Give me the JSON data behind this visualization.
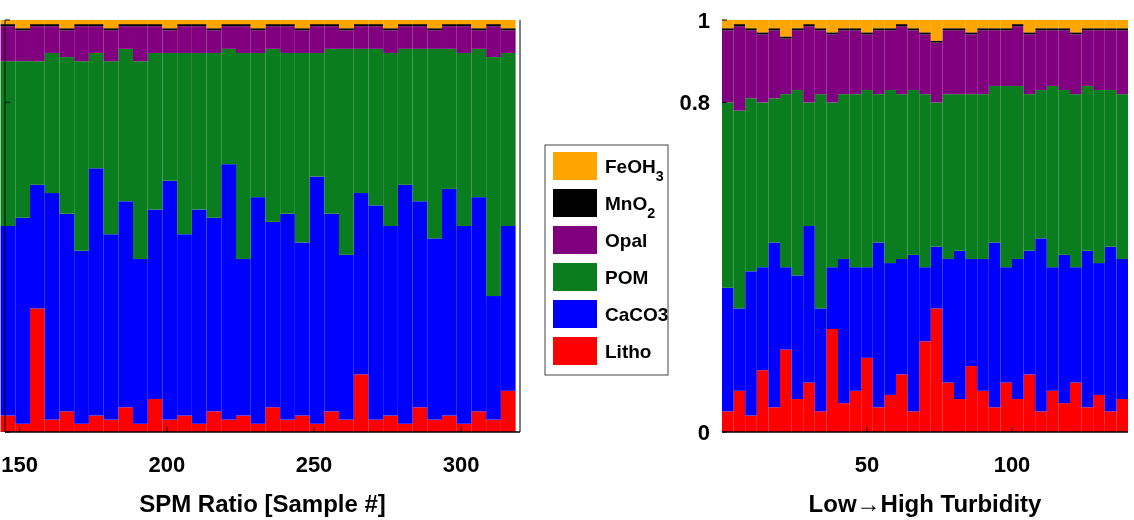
{
  "chart_data": [
    {
      "type": "bar",
      "stacked": true,
      "xlabel": "SPM Ratio [Sample #]",
      "xlim": [
        145,
        320
      ],
      "xticks": [
        150,
        200,
        250,
        300
      ],
      "ylim": [
        0,
        1
      ],
      "yticks": [
        0,
        0.8,
        1
      ],
      "tick_labels": "x",
      "legend": "right",
      "x": [
        146,
        151,
        156,
        161,
        166,
        171,
        176,
        181,
        186,
        191,
        196,
        201,
        206,
        211,
        216,
        221,
        226,
        231,
        236,
        241,
        246,
        251,
        256,
        261,
        266,
        271,
        276,
        281,
        286,
        291,
        296,
        301,
        306,
        311,
        316
      ],
      "series": [
        {
          "name": "Litho",
          "color": "#ff0000",
          "values": [
            0.04,
            0.02,
            0.3,
            0.03,
            0.05,
            0.02,
            0.04,
            0.03,
            0.06,
            0.02,
            0.08,
            0.03,
            0.04,
            0.02,
            0.05,
            0.03,
            0.04,
            0.02,
            0.06,
            0.03,
            0.04,
            0.02,
            0.05,
            0.03,
            0.14,
            0.03,
            0.04,
            0.02,
            0.06,
            0.03,
            0.04,
            0.02,
            0.05,
            0.03,
            0.1
          ]
        },
        {
          "name": "CaCO3",
          "color": "#0000ff",
          "values": [
            0.46,
            0.5,
            0.3,
            0.55,
            0.48,
            0.42,
            0.6,
            0.45,
            0.5,
            0.4,
            0.46,
            0.58,
            0.44,
            0.52,
            0.47,
            0.62,
            0.38,
            0.55,
            0.45,
            0.5,
            0.42,
            0.6,
            0.48,
            0.4,
            0.44,
            0.52,
            0.46,
            0.58,
            0.5,
            0.44,
            0.55,
            0.48,
            0.52,
            0.3,
            0.4
          ]
        },
        {
          "name": "POM",
          "color": "#0a7d1e",
          "values": [
            0.4,
            0.38,
            0.3,
            0.34,
            0.38,
            0.46,
            0.28,
            0.42,
            0.37,
            0.48,
            0.38,
            0.31,
            0.44,
            0.38,
            0.4,
            0.28,
            0.5,
            0.35,
            0.42,
            0.39,
            0.46,
            0.3,
            0.4,
            0.5,
            0.35,
            0.38,
            0.42,
            0.33,
            0.37,
            0.46,
            0.34,
            0.42,
            0.36,
            0.58,
            0.42
          ]
        },
        {
          "name": "Opal",
          "color": "#800080",
          "values": [
            0.085,
            0.075,
            0.085,
            0.065,
            0.065,
            0.085,
            0.065,
            0.075,
            0.055,
            0.085,
            0.065,
            0.055,
            0.065,
            0.065,
            0.055,
            0.055,
            0.065,
            0.055,
            0.055,
            0.065,
            0.055,
            0.065,
            0.055,
            0.045,
            0.055,
            0.055,
            0.055,
            0.055,
            0.055,
            0.045,
            0.055,
            0.065,
            0.045,
            0.075,
            0.055
          ]
        },
        {
          "name": "MnO$_{2}$",
          "color": "#000000",
          "values": [
            0.005,
            0.005,
            0.005,
            0.005,
            0.005,
            0.005,
            0.005,
            0.005,
            0.005,
            0.005,
            0.005,
            0.005,
            0.005,
            0.005,
            0.005,
            0.005,
            0.005,
            0.005,
            0.005,
            0.005,
            0.005,
            0.005,
            0.005,
            0.005,
            0.005,
            0.005,
            0.005,
            0.005,
            0.005,
            0.005,
            0.005,
            0.005,
            0.005,
            0.005,
            0.005
          ]
        },
        {
          "name": "FeOH$_{3}$",
          "color": "#ffa500",
          "values": [
            0.01,
            0.02,
            0.01,
            0.01,
            0.02,
            0.01,
            0.01,
            0.02,
            0.01,
            0.01,
            0.01,
            0.02,
            0.01,
            0.01,
            0.02,
            0.01,
            0.01,
            0.02,
            0.01,
            0.01,
            0.02,
            0.01,
            0.01,
            0.02,
            0.01,
            0.01,
            0.02,
            0.01,
            0.01,
            0.02,
            0.01,
            0.01,
            0.02,
            0.01,
            0.02
          ]
        }
      ]
    },
    {
      "type": "bar",
      "stacked": true,
      "xlabel": "Low→High Turbidity",
      "xlim": [
        0,
        140
      ],
      "xticks": [
        50,
        100
      ],
      "ylim": [
        0,
        1
      ],
      "yticks": [
        0,
        0.8,
        1
      ],
      "x": [
        2,
        6,
        10,
        14,
        18,
        22,
        26,
        30,
        34,
        38,
        42,
        46,
        50,
        54,
        58,
        62,
        66,
        70,
        74,
        78,
        82,
        86,
        90,
        94,
        98,
        102,
        106,
        110,
        114,
        118,
        122,
        126,
        130,
        134,
        138
      ],
      "series": [
        {
          "color": "#ff0000",
          "values": [
            0.05,
            0.1,
            0.04,
            0.15,
            0.06,
            0.2,
            0.08,
            0.12,
            0.05,
            0.25,
            0.07,
            0.1,
            0.18,
            0.06,
            0.09,
            0.14,
            0.05,
            0.22,
            0.3,
            0.12,
            0.08,
            0.16,
            0.1,
            0.06,
            0.12,
            0.08,
            0.14,
            0.05,
            0.1,
            0.07,
            0.12,
            0.06,
            0.09,
            0.05,
            0.08
          ]
        },
        {
          "color": "#0000ff",
          "values": [
            0.3,
            0.2,
            0.35,
            0.25,
            0.4,
            0.2,
            0.3,
            0.38,
            0.25,
            0.15,
            0.35,
            0.3,
            0.22,
            0.4,
            0.32,
            0.28,
            0.38,
            0.18,
            0.15,
            0.3,
            0.36,
            0.26,
            0.32,
            0.4,
            0.28,
            0.34,
            0.3,
            0.42,
            0.3,
            0.36,
            0.28,
            0.38,
            0.32,
            0.4,
            0.34
          ]
        },
        {
          "color": "#0a7d1e",
          "values": [
            0.45,
            0.48,
            0.42,
            0.4,
            0.35,
            0.42,
            0.45,
            0.3,
            0.52,
            0.4,
            0.4,
            0.42,
            0.43,
            0.36,
            0.42,
            0.4,
            0.4,
            0.42,
            0.35,
            0.4,
            0.38,
            0.4,
            0.4,
            0.38,
            0.44,
            0.42,
            0.38,
            0.36,
            0.44,
            0.4,
            0.42,
            0.4,
            0.42,
            0.38,
            0.4
          ]
        },
        {
          "color": "#800080",
          "values": [
            0.175,
            0.205,
            0.165,
            0.165,
            0.165,
            0.135,
            0.145,
            0.185,
            0.155,
            0.165,
            0.155,
            0.155,
            0.135,
            0.155,
            0.145,
            0.165,
            0.145,
            0.145,
            0.145,
            0.155,
            0.155,
            0.145,
            0.155,
            0.135,
            0.135,
            0.145,
            0.145,
            0.145,
            0.135,
            0.145,
            0.145,
            0.135,
            0.145,
            0.145,
            0.155
          ]
        },
        {
          "color": "#000000",
          "values": [
            0.005,
            0.005,
            0.005,
            0.005,
            0.005,
            0.005,
            0.005,
            0.005,
            0.005,
            0.005,
            0.005,
            0.005,
            0.005,
            0.005,
            0.005,
            0.005,
            0.005,
            0.005,
            0.005,
            0.005,
            0.005,
            0.005,
            0.005,
            0.005,
            0.005,
            0.005,
            0.005,
            0.005,
            0.005,
            0.005,
            0.005,
            0.005,
            0.005,
            0.005,
            0.005
          ]
        },
        {
          "color": "#ffa500",
          "values": [
            0.02,
            0.01,
            0.02,
            0.03,
            0.02,
            0.04,
            0.02,
            0.01,
            0.02,
            0.03,
            0.02,
            0.02,
            0.03,
            0.02,
            0.02,
            0.01,
            0.02,
            0.03,
            0.05,
            0.02,
            0.02,
            0.03,
            0.02,
            0.02,
            0.02,
            0.01,
            0.03,
            0.02,
            0.02,
            0.02,
            0.03,
            0.02,
            0.02,
            0.02,
            0.02
          ]
        }
      ]
    }
  ]
}
